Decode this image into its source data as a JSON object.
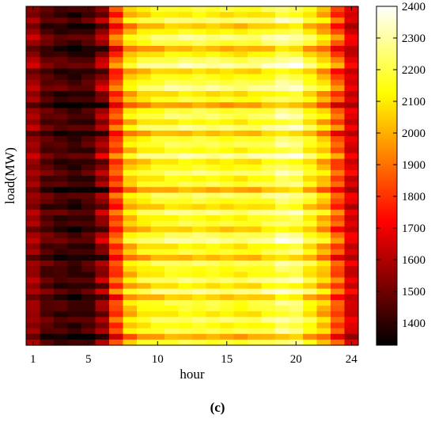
{
  "chart_data": {
    "type": "heatmap",
    "title": "",
    "xlabel": "hour",
    "ylabel": "load(MW)",
    "panel_label": "(c)",
    "x_range": [
      1,
      24
    ],
    "x_ticks": [
      1,
      5,
      10,
      15,
      20,
      24
    ],
    "y_ticks": [],
    "num_rows": 60,
    "colorbar": {
      "colormap": "hot",
      "range": [
        1330,
        2400
      ],
      "ticks": [
        1400,
        1500,
        1600,
        1700,
        1800,
        1900,
        2000,
        2100,
        2200,
        2300,
        2400
      ]
    },
    "hourly_profile_mw": [
      1560,
      1460,
      1430,
      1410,
      1430,
      1540,
      1820,
      2040,
      2110,
      2140,
      2160,
      2170,
      2170,
      2160,
      2150,
      2140,
      2150,
      2180,
      2230,
      2220,
      2120,
      2020,
      1840,
      1660
    ],
    "row_offsets_mw": [
      20,
      -60,
      90,
      -120,
      -20,
      110,
      40,
      -150,
      -40,
      70,
      150,
      -90,
      -10,
      50,
      120,
      -70,
      10,
      -180,
      30,
      80,
      -40,
      100,
      -130,
      20,
      60,
      -20,
      140,
      -60,
      0,
      90,
      -30,
      40,
      -160,
      80,
      10,
      -80,
      110,
      -20,
      30,
      -100,
      60,
      130,
      -50,
      20,
      -140,
      70,
      0,
      -30,
      90,
      -70,
      120,
      -110,
      40,
      10,
      -50,
      80,
      -20,
      50,
      -170,
      30
    ]
  }
}
